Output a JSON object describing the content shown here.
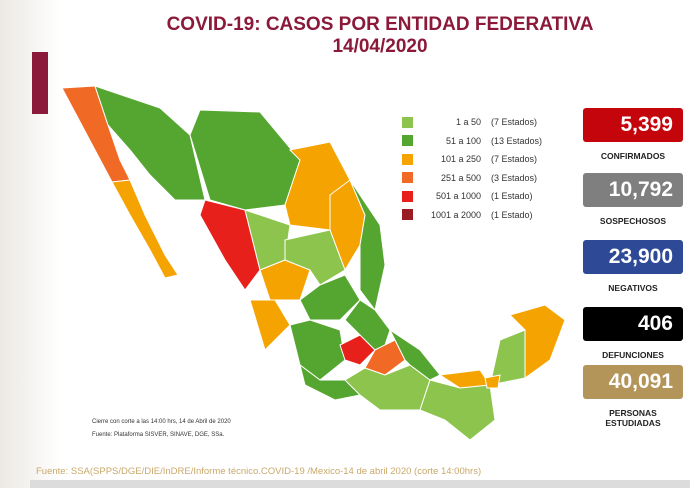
{
  "header": {
    "title": "COVID-19: CASOS POR ENTIDAD FEDERATIVA",
    "date": "14/04/2020"
  },
  "legend": [
    {
      "range": "1 a 50",
      "count": "(7 Estados)",
      "color": "#8dc44e"
    },
    {
      "range": "51 a 100",
      "count": "(13 Estados)",
      "color": "#55a630"
    },
    {
      "range": "101 a 250",
      "count": "(7 Estados)",
      "color": "#f5a300"
    },
    {
      "range": "251 a 500",
      "count": "(3 Estados)",
      "color": "#f06a26"
    },
    {
      "range": "501 a 1000",
      "count": "(1 Estado)",
      "color": "#e8201c"
    },
    {
      "range": "1001 a 2000",
      "count": "(1 Estado)",
      "color": "#9a1b22"
    }
  ],
  "stats": [
    {
      "value": "5,399",
      "label": "CONFIRMADOS",
      "color": "#c4060c"
    },
    {
      "value": "10,792",
      "label": "SOSPECHOSOS",
      "color": "#7f7f7f"
    },
    {
      "value": "23,900",
      "label": "NEGATIVOS",
      "color": "#2e4a96"
    },
    {
      "value": "406",
      "label": "DEFUNCIONES",
      "color": "#000000"
    },
    {
      "value": "40,091",
      "label": "PERSONAS ESTUDIADAS",
      "color": "#b39559"
    }
  ],
  "notes": {
    "cutoff": "Cierre con corte a las 14:00 hrs, 14 de Abril de 2020",
    "source": "Fuente: Plataforma SISVER, SINAVE, DGE, SSa."
  },
  "footer": "Fuente: SSA(SPPS/DGE/DIE/InDRE/Informe técnico.COVID-19 /Mexico-14 de abril 2020 (corte 14:00hrs)"
}
